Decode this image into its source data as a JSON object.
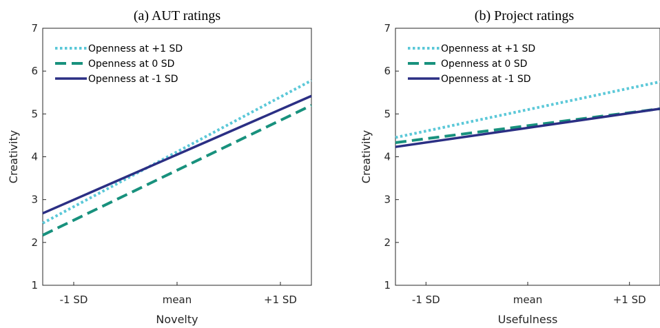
{
  "chart_data": [
    {
      "type": "line",
      "title": "(a)  AUT ratings",
      "xlabel": "Novelty",
      "ylabel": "Creativity",
      "x": [
        -1.3,
        1.3
      ],
      "xlim": [
        -1.3,
        1.3
      ],
      "ylim": [
        1,
        7
      ],
      "xticks": [
        -1,
        0,
        1
      ],
      "xtick_labels": [
        "-1 SD",
        "mean",
        "+1 SD"
      ],
      "yticks": [
        1,
        2,
        3,
        4,
        5,
        6,
        7
      ],
      "ytick_labels": [
        "1",
        "2",
        "3",
        "4",
        "5",
        "6",
        "7"
      ],
      "legend_position": "top-left",
      "series": [
        {
          "name": "Openness at +1 SD",
          "values": [
            2.45,
            5.78
          ],
          "color": "#5bc8d8",
          "style": "dotted"
        },
        {
          "name": "Openness at 0 SD",
          "values": [
            2.17,
            5.2
          ],
          "color": "#18917d",
          "style": "dashed"
        },
        {
          "name": "Openness at -1 SD",
          "values": [
            2.68,
            5.42
          ],
          "color": "#2b2f84",
          "style": "solid"
        }
      ]
    },
    {
      "type": "line",
      "title": "(b)  Project ratings",
      "xlabel": "Usefulness",
      "ylabel": "Creativity",
      "x": [
        -1.3,
        1.3
      ],
      "xlim": [
        -1.3,
        1.3
      ],
      "ylim": [
        1,
        7
      ],
      "xticks": [
        -1,
        0,
        1
      ],
      "xtick_labels": [
        "-1 SD",
        "mean",
        "+1 SD"
      ],
      "yticks": [
        1,
        2,
        3,
        4,
        5,
        6,
        7
      ],
      "ytick_labels": [
        "1",
        "2",
        "3",
        "4",
        "5",
        "6",
        "7"
      ],
      "legend_position": "top-left",
      "series": [
        {
          "name": "Openness at +1 SD",
          "values": [
            4.45,
            5.75
          ],
          "color": "#5bc8d8",
          "style": "dotted"
        },
        {
          "name": "Openness at 0 SD",
          "values": [
            4.33,
            5.12
          ],
          "color": "#18917d",
          "style": "dashed"
        },
        {
          "name": "Openness at -1 SD",
          "values": [
            4.23,
            5.12
          ],
          "color": "#2b2f84",
          "style": "solid"
        }
      ]
    }
  ]
}
